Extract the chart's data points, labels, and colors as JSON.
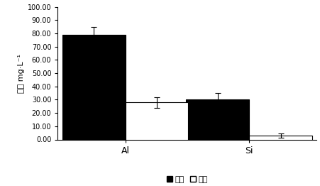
{
  "groups": [
    "Al",
    "Si"
  ],
  "series": [
    "加菌",
    "对照"
  ],
  "values": [
    [
      79.0,
      28.0
    ],
    [
      30.0,
      3.0
    ]
  ],
  "errors": [
    [
      6.0,
      4.0
    ],
    [
      5.0,
      1.5
    ]
  ],
  "bar_colors": [
    "#000000",
    "#ffffff"
  ],
  "bar_edgecolors": [
    "#000000",
    "#000000"
  ],
  "ylabel": "浓度 mg·L⁻¹",
  "ylim": [
    0,
    100
  ],
  "yticks": [
    0.0,
    10.0,
    20.0,
    30.0,
    40.0,
    50.0,
    60.0,
    70.0,
    80.0,
    90.0,
    100.0
  ],
  "ytick_labels": [
    "0.00",
    "10.00",
    "20.00",
    "30.00",
    "40.00",
    "50.00",
    "60.00",
    "70.00",
    "80.00",
    "90.00",
    "100.00"
  ],
  "bar_width": 0.28,
  "legend_labels": [
    "■加菌",
    "□对照"
  ],
  "error_capsize": 3,
  "error_color": "#000000",
  "background_color": "#ffffff",
  "group_positions": [
    0.3,
    0.85
  ],
  "xlim": [
    0.0,
    1.15
  ]
}
